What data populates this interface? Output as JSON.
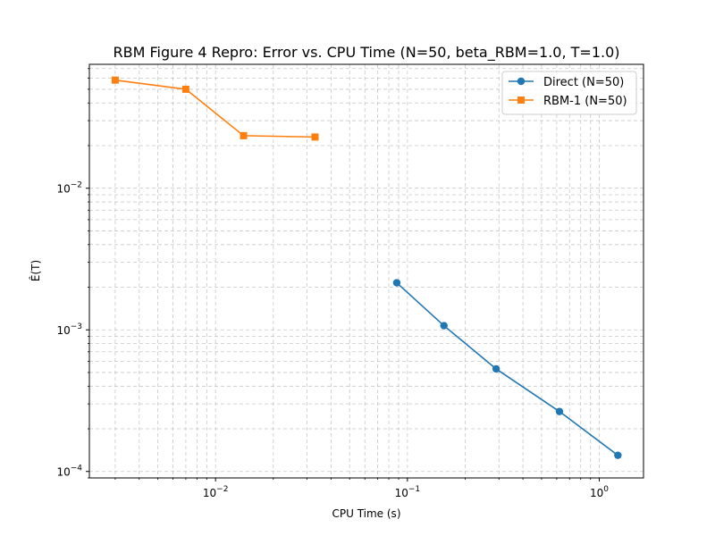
{
  "chart_data": {
    "type": "line",
    "title": "RBM Figure 4 Repro: Error vs. CPU Time (N=50, beta_RBM=1.0, T=1.0)",
    "xlabel": "CPU Time (s)",
    "ylabel": "Ê(T)",
    "xscale": "log",
    "yscale": "log",
    "xlim": [
      0.0022,
      1.7
    ],
    "ylim": [
      9e-05,
      0.075
    ],
    "grid": "major and minor",
    "legend_position": "top-right",
    "x_ticks": [
      {
        "value": 0.01,
        "base": "10",
        "exp": "−2"
      },
      {
        "value": 0.1,
        "base": "10",
        "exp": "−1"
      },
      {
        "value": 1,
        "base": "10",
        "exp": "0"
      }
    ],
    "y_ticks": [
      {
        "value": 0.0001,
        "base": "10",
        "exp": "−4"
      },
      {
        "value": 0.001,
        "base": "10",
        "exp": "−3"
      },
      {
        "value": 0.01,
        "base": "10",
        "exp": "−2"
      }
    ],
    "series": [
      {
        "name": "Direct (N=50)",
        "color": "#1f77b4",
        "marker": "circle",
        "x": [
          0.088,
          0.155,
          0.29,
          0.62,
          1.25
        ],
        "y": [
          0.00215,
          0.00107,
          0.00053,
          0.000265,
          0.00013
        ]
      },
      {
        "name": "RBM-1 (N=50)",
        "color": "#ff7f0e",
        "marker": "square",
        "x": [
          0.003,
          0.007,
          0.014,
          0.033
        ],
        "y": [
          0.058,
          0.05,
          0.0235,
          0.023
        ]
      }
    ]
  }
}
